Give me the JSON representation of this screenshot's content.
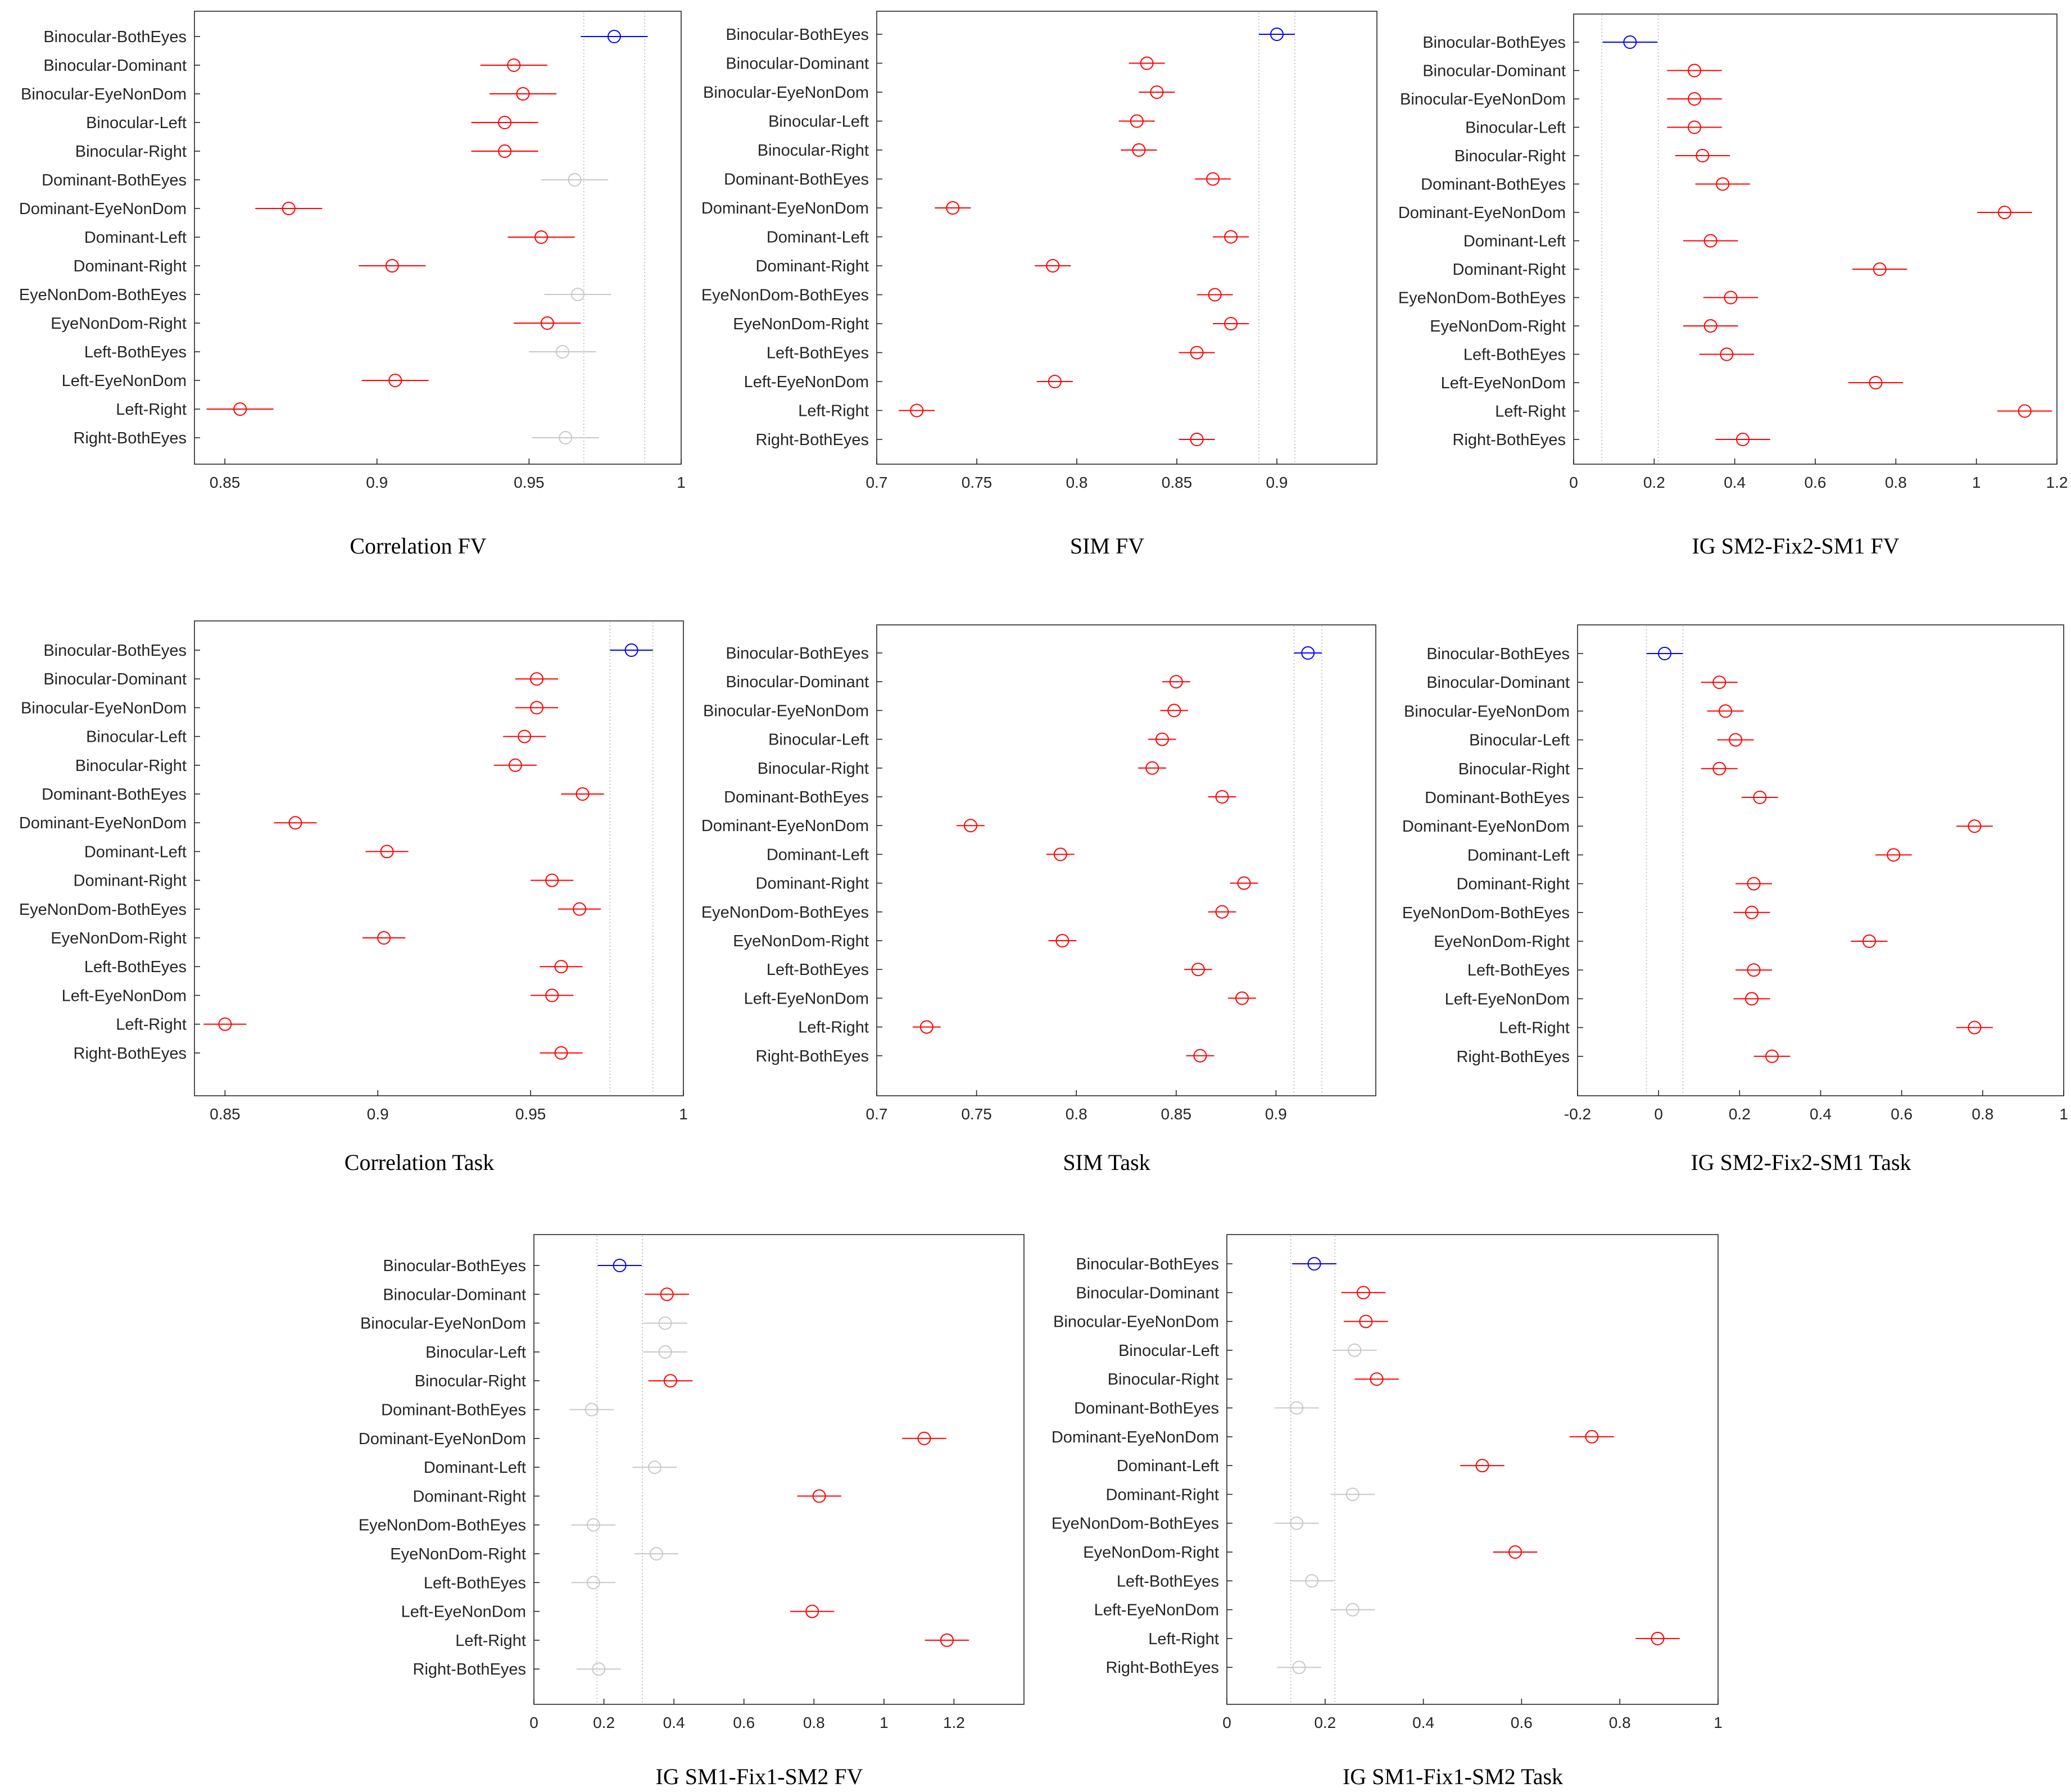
{
  "categories": [
    "Binocular-BothEyes",
    "Binocular-Dominant",
    "Binocular-EyeNonDom",
    "Binocular-Left",
    "Binocular-Right",
    "Dominant-BothEyes",
    "Dominant-EyeNonDom",
    "Dominant-Left",
    "Dominant-Right",
    "EyeNonDom-BothEyes",
    "EyeNonDom-Right",
    "Left-BothEyes",
    "Left-EyeNonDom",
    "Left-Right",
    "Right-BothEyes"
  ],
  "colors": {
    "reference": "#0000ff",
    "significant": "#ff0000",
    "not_significant": "#c8c8c8",
    "axis": "#262626"
  },
  "chart_data": [
    {
      "type": "scatter",
      "title": "Correlation FV",
      "xlim": [
        0.84,
        1.0
      ],
      "xticks": [
        0.85,
        0.9,
        0.95,
        1
      ],
      "xticklabels": [
        "0.85",
        "0.9",
        "0.95",
        "1"
      ],
      "ci": 0.011,
      "refband": [
        0.968,
        0.988
      ],
      "categories": [
        "Binocular-BothEyes",
        "Binocular-Dominant",
        "Binocular-EyeNonDom",
        "Binocular-Left",
        "Binocular-Right",
        "Dominant-BothEyes",
        "Dominant-EyeNonDom",
        "Dominant-Left",
        "Dominant-Right",
        "EyeNonDom-BothEyes",
        "EyeNonDom-Right",
        "Left-BothEyes",
        "Left-EyeNonDom",
        "Left-Right",
        "Right-BothEyes"
      ],
      "values": [
        0.978,
        0.945,
        0.948,
        0.942,
        0.942,
        0.965,
        0.871,
        0.954,
        0.905,
        0.966,
        0.956,
        0.961,
        0.906,
        0.855,
        0.962
      ],
      "status": [
        "ref",
        "sig",
        "sig",
        "sig",
        "sig",
        "ns",
        "sig",
        "sig",
        "sig",
        "ns",
        "sig",
        "ns",
        "sig",
        "sig",
        "ns"
      ]
    },
    {
      "type": "scatter",
      "title": "SIM FV",
      "xlim": [
        0.7,
        0.95
      ],
      "xticks": [
        0.7,
        0.75,
        0.8,
        0.85,
        0.9
      ],
      "xticklabels": [
        "0.7",
        "0.75",
        "0.8",
        "0.85",
        "0.9"
      ],
      "ci": 0.009,
      "refband": [
        0.891,
        0.909
      ],
      "categories": [
        "Binocular-BothEyes",
        "Binocular-Dominant",
        "Binocular-EyeNonDom",
        "Binocular-Left",
        "Binocular-Right",
        "Dominant-BothEyes",
        "Dominant-EyeNonDom",
        "Dominant-Left",
        "Dominant-Right",
        "EyeNonDom-BothEyes",
        "EyeNonDom-Right",
        "Left-BothEyes",
        "Left-EyeNonDom",
        "Left-Right",
        "Right-BothEyes"
      ],
      "values": [
        0.9,
        0.835,
        0.84,
        0.83,
        0.831,
        0.868,
        0.738,
        0.877,
        0.788,
        0.869,
        0.877,
        0.86,
        0.789,
        0.72,
        0.86
      ],
      "status": [
        "ref",
        "sig",
        "sig",
        "sig",
        "sig",
        "sig",
        "sig",
        "sig",
        "sig",
        "sig",
        "sig",
        "sig",
        "sig",
        "sig",
        "sig"
      ]
    },
    {
      "type": "scatter",
      "title": "IG SM2-Fix2-SM1 FV",
      "xlim": [
        0,
        1.2
      ],
      "xticks": [
        0,
        0.2,
        0.4,
        0.6,
        0.8,
        1,
        1.2
      ],
      "xticklabels": [
        "0",
        "0.2",
        "0.4",
        "0.6",
        "0.8",
        "1",
        "1.2"
      ],
      "ci": 0.068,
      "refband": [
        0.07,
        0.21
      ],
      "categories": [
        "Binocular-BothEyes",
        "Binocular-Dominant",
        "Binocular-EyeNonDom",
        "Binocular-Left",
        "Binocular-Right",
        "Dominant-BothEyes",
        "Dominant-EyeNonDom",
        "Dominant-Left",
        "Dominant-Right",
        "EyeNonDom-BothEyes",
        "EyeNonDom-Right",
        "Left-BothEyes",
        "Left-EyeNonDom",
        "Left-Right",
        "Right-BothEyes"
      ],
      "values": [
        0.14,
        0.3,
        0.3,
        0.3,
        0.32,
        0.37,
        1.07,
        0.34,
        0.76,
        0.39,
        0.34,
        0.38,
        0.75,
        1.12,
        0.42
      ],
      "status": [
        "ref",
        "sig",
        "sig",
        "sig",
        "sig",
        "sig",
        "sig",
        "sig",
        "sig",
        "sig",
        "sig",
        "sig",
        "sig",
        "sig",
        "sig"
      ]
    },
    {
      "type": "scatter",
      "title": "Correlation Task",
      "xlim": [
        0.84,
        1.0
      ],
      "xticks": [
        0.85,
        0.9,
        0.95,
        1
      ],
      "xticklabels": [
        "0.85",
        "0.9",
        "0.95",
        "1"
      ],
      "ci": 0.007,
      "refband": [
        0.976,
        0.99
      ],
      "categories": [
        "Binocular-BothEyes",
        "Binocular-Dominant",
        "Binocular-EyeNonDom",
        "Binocular-Left",
        "Binocular-Right",
        "Dominant-BothEyes",
        "Dominant-EyeNonDom",
        "Dominant-Left",
        "Dominant-Right",
        "EyeNonDom-BothEyes",
        "EyeNonDom-Right",
        "Left-BothEyes",
        "Left-EyeNonDom",
        "Left-Right",
        "Right-BothEyes"
      ],
      "values": [
        0.983,
        0.952,
        0.952,
        0.948,
        0.945,
        0.967,
        0.873,
        0.903,
        0.957,
        0.966,
        0.902,
        0.96,
        0.957,
        0.85,
        0.96
      ],
      "status": [
        "ref",
        "sig",
        "sig",
        "sig",
        "sig",
        "sig",
        "sig",
        "sig",
        "sig",
        "sig",
        "sig",
        "sig",
        "sig",
        "sig",
        "sig"
      ]
    },
    {
      "type": "scatter",
      "title": "SIM Task",
      "xlim": [
        0.7,
        0.95
      ],
      "xticks": [
        0.7,
        0.75,
        0.8,
        0.85,
        0.9
      ],
      "xticklabels": [
        "0.7",
        "0.75",
        "0.8",
        "0.85",
        "0.9"
      ],
      "ci": 0.007,
      "refband": [
        0.909,
        0.923
      ],
      "categories": [
        "Binocular-BothEyes",
        "Binocular-Dominant",
        "Binocular-EyeNonDom",
        "Binocular-Left",
        "Binocular-Right",
        "Dominant-BothEyes",
        "Dominant-EyeNonDom",
        "Dominant-Left",
        "Dominant-Right",
        "EyeNonDom-BothEyes",
        "EyeNonDom-Right",
        "Left-BothEyes",
        "Left-EyeNonDom",
        "Left-Right",
        "Right-BothEyes"
      ],
      "values": [
        0.916,
        0.85,
        0.849,
        0.843,
        0.838,
        0.873,
        0.747,
        0.792,
        0.884,
        0.873,
        0.793,
        0.861,
        0.883,
        0.725,
        0.862
      ],
      "status": [
        "ref",
        "sig",
        "sig",
        "sig",
        "sig",
        "sig",
        "sig",
        "sig",
        "sig",
        "sig",
        "sig",
        "sig",
        "sig",
        "sig",
        "sig"
      ]
    },
    {
      "type": "scatter",
      "title": "IG SM2-Fix2-SM1 Task",
      "xlim": [
        -0.2,
        1.0
      ],
      "xticks": [
        -0.2,
        0,
        0.2,
        0.4,
        0.6,
        0.8,
        1
      ],
      "xticklabels": [
        "-0.2",
        "0",
        "0.2",
        "0.4",
        "0.6",
        "0.8",
        "1"
      ],
      "ci": 0.045,
      "refband": [
        -0.03,
        0.06
      ],
      "categories": [
        "Binocular-BothEyes",
        "Binocular-Dominant",
        "Binocular-EyeNonDom",
        "Binocular-Left",
        "Binocular-Right",
        "Dominant-BothEyes",
        "Dominant-EyeNonDom",
        "Dominant-Left",
        "Dominant-Right",
        "EyeNonDom-BothEyes",
        "EyeNonDom-Right",
        "Left-BothEyes",
        "Left-EyeNonDom",
        "Left-Right",
        "Right-BothEyes"
      ],
      "values": [
        0.015,
        0.15,
        0.165,
        0.19,
        0.15,
        0.25,
        0.78,
        0.58,
        0.235,
        0.23,
        0.52,
        0.235,
        0.23,
        0.78,
        0.28
      ],
      "status": [
        "ref",
        "sig",
        "sig",
        "sig",
        "sig",
        "sig",
        "sig",
        "sig",
        "sig",
        "sig",
        "sig",
        "sig",
        "sig",
        "sig",
        "sig"
      ]
    },
    {
      "type": "scatter",
      "title": "IG SM1-Fix1-SM2 FV",
      "xlim": [
        0,
        1.4
      ],
      "xticks": [
        0,
        0.2,
        0.4,
        0.6,
        0.8,
        1,
        1.2
      ],
      "xticklabels": [
        "0",
        "0.2",
        "0.4",
        "0.6",
        "0.8",
        "1",
        "1.2"
      ],
      "ci": 0.063,
      "refband": [
        0.18,
        0.31
      ],
      "categories": [
        "Binocular-BothEyes",
        "Binocular-Dominant",
        "Binocular-EyeNonDom",
        "Binocular-Left",
        "Binocular-Right",
        "Dominant-BothEyes",
        "Dominant-EyeNonDom",
        "Dominant-Left",
        "Dominant-Right",
        "EyeNonDom-BothEyes",
        "EyeNonDom-Right",
        "Left-BothEyes",
        "Left-EyeNonDom",
        "Left-Right",
        "Right-BothEyes"
      ],
      "values": [
        0.245,
        0.38,
        0.375,
        0.375,
        0.39,
        0.165,
        1.115,
        0.345,
        0.815,
        0.17,
        0.35,
        0.17,
        0.795,
        1.18,
        0.185
      ],
      "status": [
        "ref",
        "sig",
        "ns",
        "ns",
        "sig",
        "ns",
        "sig",
        "ns",
        "sig",
        "ns",
        "ns",
        "ns",
        "sig",
        "sig",
        "ns"
      ]
    },
    {
      "type": "scatter",
      "title": "IG SM1-Fix1-SM2 Task",
      "xlim": [
        0,
        1.0
      ],
      "xticks": [
        0,
        0.2,
        0.4,
        0.6,
        0.8,
        1
      ],
      "xticklabels": [
        "0",
        "0.2",
        "0.4",
        "0.6",
        "0.8",
        "1"
      ],
      "ci": 0.045,
      "refband": [
        0.13,
        0.22
      ],
      "categories": [
        "Binocular-BothEyes",
        "Binocular-Dominant",
        "Binocular-EyeNonDom",
        "Binocular-Left",
        "Binocular-Right",
        "Dominant-BothEyes",
        "Dominant-EyeNonDom",
        "Dominant-Left",
        "Dominant-Right",
        "EyeNonDom-BothEyes",
        "EyeNonDom-Right",
        "Left-BothEyes",
        "Left-EyeNonDom",
        "Left-Right",
        "Right-BothEyes"
      ],
      "values": [
        0.178,
        0.278,
        0.283,
        0.26,
        0.305,
        0.142,
        0.743,
        0.52,
        0.256,
        0.142,
        0.587,
        0.173,
        0.256,
        0.877,
        0.147
      ],
      "status": [
        "ref",
        "sig",
        "sig",
        "ns",
        "sig",
        "ns",
        "sig",
        "sig",
        "ns",
        "ns",
        "sig",
        "ns",
        "ns",
        "sig",
        "ns"
      ]
    }
  ]
}
